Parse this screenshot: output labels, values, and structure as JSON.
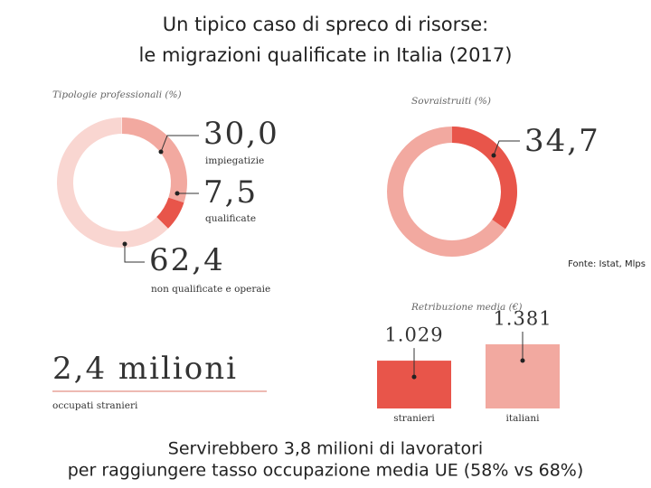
{
  "title": [
    "Un tipico caso di spreco di risorse:",
    "le migrazioni qualificate in Italia (2017)"
  ],
  "source": "Fonte: Istat, Mlps",
  "stat": {
    "value": "2,4 milioni",
    "label": "occupati stranieri"
  },
  "footer": [
    "Servirebbero 3,8 milioni di lavoratori",
    "per raggiungere tasso occupazione media UE (58% vs 68%)"
  ],
  "chart_data": [
    {
      "type": "donut",
      "title": "Tipologie professionali (%)",
      "categories": [
        "impiegatizie",
        "qualificate",
        "non qualificate e operaie"
      ],
      "values": [
        30.0,
        7.5,
        62.4
      ],
      "value_labels": [
        "30,0",
        "7,5",
        "62,4"
      ],
      "colors": [
        "#f2a9a0",
        "#e8554a",
        "#f9d6d1"
      ],
      "rlim": [
        0,
        100
      ]
    },
    {
      "type": "donut",
      "title": "Sovraistruiti (%)",
      "values": [
        34.7
      ],
      "value_labels": [
        "34,7"
      ],
      "colors": [
        "#e8554a"
      ],
      "rest_color": "#f2a9a0",
      "rlim": [
        0,
        100
      ]
    },
    {
      "type": "bar",
      "title": "Retribuzione media (€)",
      "categories": [
        "stranieri",
        "italiani"
      ],
      "values": [
        1029,
        1381
      ],
      "value_labels": [
        "1.029",
        "1.381"
      ],
      "colors": [
        "#e8554a",
        "#f2a9a0"
      ],
      "ylim": [
        0,
        1400
      ]
    }
  ]
}
